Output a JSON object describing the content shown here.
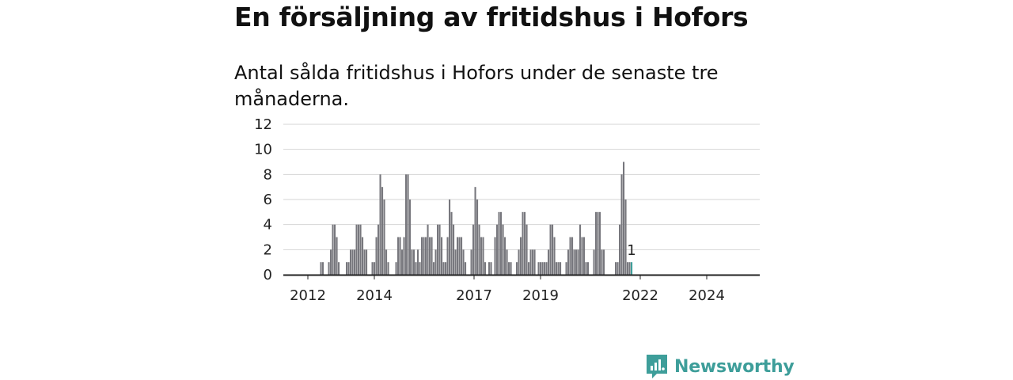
{
  "title": "En försäljning av fritidshus i Hofors",
  "subtitle": "Antal sålda fritidshus i Hofors under de senaste tre månaderna.",
  "brand": "Newsworthy",
  "colors": {
    "bar": "#77777d",
    "highlight": "#3e9e9a",
    "grid": "#d6d6d6",
    "axis": "#222222",
    "brand": "#3e9e9a"
  },
  "chart_data": {
    "type": "bar",
    "title": "En försäljning av fritidshus i Hofors",
    "subtitle": "Antal sålda fritidshus i Hofors under de senaste tre månaderna.",
    "xlabel": "",
    "ylabel": "",
    "ylim": [
      0,
      12
    ],
    "yticks": [
      0,
      2,
      4,
      6,
      8,
      10,
      12
    ],
    "xtick_labels": [
      "2012",
      "2014",
      "2017",
      "2019",
      "2022",
      "2024"
    ],
    "grid": true,
    "highlight": {
      "label": "1",
      "value": 1
    },
    "values": [
      0,
      0,
      0,
      0,
      0,
      0,
      0,
      1,
      1,
      0,
      0,
      1,
      2,
      4,
      4,
      3,
      1,
      0,
      0,
      0,
      1,
      1,
      2,
      2,
      2,
      4,
      4,
      4,
      3,
      2,
      2,
      0,
      0,
      1,
      1,
      3,
      4,
      8,
      7,
      6,
      2,
      1,
      0,
      0,
      0,
      1,
      3,
      3,
      2,
      3,
      8,
      8,
      6,
      2,
      2,
      1,
      2,
      1,
      3,
      3,
      3,
      4,
      3,
      3,
      1,
      2,
      4,
      4,
      3,
      1,
      1,
      3,
      6,
      5,
      4,
      2,
      3,
      3,
      3,
      2,
      1,
      0,
      0,
      2,
      4,
      7,
      6,
      4,
      3,
      3,
      1,
      0,
      1,
      1,
      0,
      3,
      4,
      5,
      5,
      4,
      3,
      2,
      1,
      1,
      0,
      0,
      1,
      2,
      3,
      5,
      5,
      4,
      1,
      2,
      2,
      2,
      0,
      1,
      1,
      1,
      1,
      1,
      2,
      4,
      4,
      3,
      1,
      1,
      1,
      0,
      0,
      1,
      2,
      3,
      3,
      2,
      2,
      2,
      4,
      3,
      3,
      1,
      1,
      0,
      0,
      2,
      5,
      5,
      5,
      2,
      2,
      0,
      0,
      0,
      0,
      0,
      1,
      1,
      4,
      8,
      9,
      6,
      1,
      1,
      1
    ]
  }
}
